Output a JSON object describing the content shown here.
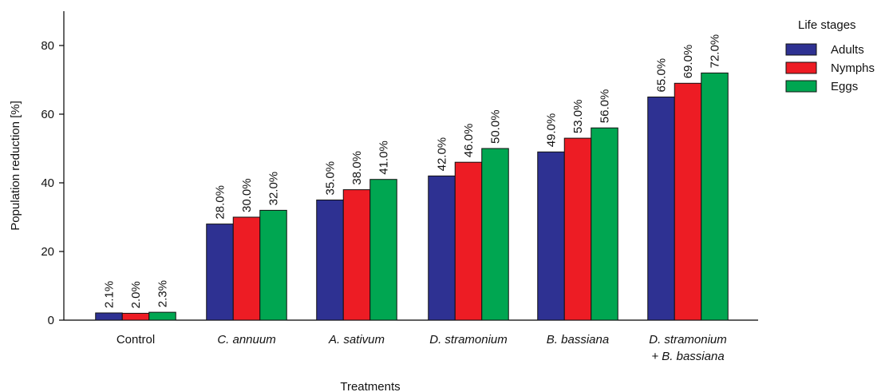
{
  "chart_data": {
    "type": "bar",
    "title": "",
    "xlabel": "Treatments",
    "ylabel": "Population reduction [%]",
    "ylim": [
      0,
      90
    ],
    "yticks": [
      0,
      20,
      40,
      60,
      80
    ],
    "grid": false,
    "legend_position": "top-right",
    "legend_title": "Life stages",
    "categories": [
      {
        "lines": [
          "Control"
        ],
        "italic": false
      },
      {
        "lines": [
          "C. annuum"
        ],
        "italic": true
      },
      {
        "lines": [
          "A. sativum"
        ],
        "italic": true
      },
      {
        "lines": [
          "D. stramonium"
        ],
        "italic": true
      },
      {
        "lines": [
          "B. bassiana"
        ],
        "italic": true
      },
      {
        "lines": [
          "D. stramonium",
          "+ B. bassiana"
        ],
        "italic": true
      }
    ],
    "series": [
      {
        "name": "Adults",
        "color": "#2e3192",
        "values": [
          2.1,
          28.0,
          35.0,
          42.0,
          49.0,
          65.0
        ],
        "labels": [
          "2.1%",
          "28.0%",
          "35.0%",
          "42.0%",
          "49.0%",
          "65.0%"
        ]
      },
      {
        "name": "Nymphs",
        "color": "#ed1c24",
        "values": [
          2.0,
          30.0,
          38.0,
          46.0,
          53.0,
          69.0
        ],
        "labels": [
          "2.0%",
          "30.0%",
          "38.0%",
          "46.0%",
          "53.0%",
          "69.0%"
        ]
      },
      {
        "name": "Eggs",
        "color": "#00a651",
        "values": [
          2.3,
          32.0,
          41.0,
          50.0,
          56.0,
          72.0
        ],
        "labels": [
          "2.3%",
          "32.0%",
          "41.0%",
          "50.0%",
          "56.0%",
          "72.0%"
        ]
      }
    ]
  }
}
